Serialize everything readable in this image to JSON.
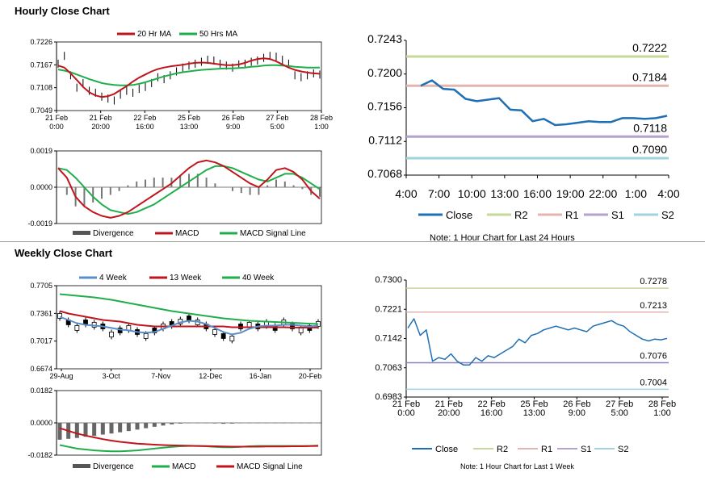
{
  "sections": {
    "hourly_title": "Hourly Close Chart",
    "weekly_title": "Weekly Close Chart"
  },
  "colors": {
    "ma20": "#c0151b",
    "ma50": "#1fae4b",
    "close": "#1f6fb5",
    "r2": "#c6d89a",
    "r1": "#e3b5b0",
    "s1": "#b5a3cf",
    "s2": "#9fd3de",
    "divergence": "#777777",
    "ma4": "#5b8fc9",
    "ma13": "#c0151b",
    "ma40": "#1fae4b"
  },
  "chart_data": [
    {
      "id": "hourly_price",
      "type": "line",
      "legend": [
        "20 Hr MA",
        "50 Hrs MA"
      ],
      "yticks": [
        "0.7226",
        "0.7167",
        "0.7108",
        "0.7049"
      ],
      "ylim": [
        0.7049,
        0.7226
      ],
      "xticks": [
        [
          "21 Feb",
          "0:00"
        ],
        [
          "21 Feb",
          "20:00"
        ],
        [
          "22 Feb",
          "16:00"
        ],
        [
          "25 Feb",
          "13:00"
        ],
        [
          "26 Feb",
          "9:00"
        ],
        [
          "27 Feb",
          "5:00"
        ],
        [
          "28 Feb",
          "1:00"
        ]
      ],
      "price": [
        0.717,
        0.719,
        0.714,
        0.7108,
        0.712,
        0.71,
        0.7095,
        0.7085,
        0.708,
        0.7075,
        0.709,
        0.71,
        0.7095,
        0.7105,
        0.711,
        0.712,
        0.7135,
        0.713,
        0.714,
        0.715,
        0.716,
        0.7165,
        0.717,
        0.7175,
        0.718,
        0.7178,
        0.717,
        0.7165,
        0.716,
        0.7168,
        0.717,
        0.7175,
        0.7178,
        0.7185,
        0.719,
        0.7188,
        0.718,
        0.717,
        0.714,
        0.7135,
        0.714,
        0.7145,
        0.7142
      ],
      "ma20": [
        0.7165,
        0.716,
        0.7145,
        0.7128,
        0.711,
        0.7096,
        0.7088,
        0.7084,
        0.7086,
        0.7092,
        0.7102,
        0.7112,
        0.7124,
        0.7134,
        0.7142,
        0.715,
        0.7156,
        0.716,
        0.7163,
        0.7165,
        0.7167,
        0.717,
        0.7172,
        0.7173,
        0.7172,
        0.717,
        0.7168,
        0.7166,
        0.7166,
        0.7168,
        0.7172,
        0.7178,
        0.7182,
        0.7184,
        0.7182,
        0.7176,
        0.7168,
        0.716,
        0.7154,
        0.715,
        0.7147,
        0.7145,
        0.7144
      ],
      "ma50": [
        0.7155,
        0.7152,
        0.7148,
        0.7142,
        0.7136,
        0.713,
        0.7125,
        0.712,
        0.7117,
        0.7115,
        0.7114,
        0.7114,
        0.7115,
        0.7118,
        0.7122,
        0.7127,
        0.7132,
        0.7137,
        0.7141,
        0.7145,
        0.7148,
        0.715,
        0.7152,
        0.7154,
        0.7155,
        0.7156,
        0.7157,
        0.7158,
        0.7158,
        0.7159,
        0.716,
        0.7162,
        0.7163,
        0.7165,
        0.7166,
        0.7166,
        0.7165,
        0.7164,
        0.7162,
        0.7161,
        0.716,
        0.716,
        0.716
      ]
    },
    {
      "id": "hourly_macd",
      "type": "line",
      "legend": [
        "Divergence",
        "MACD",
        "MACD Signal Line"
      ],
      "yticks": [
        "0.0019",
        "0.0000",
        "-0.0019"
      ],
      "ylim": [
        -0.0019,
        0.0019
      ],
      "macd": [
        0.001,
        0.0005,
        -0.0005,
        -0.001,
        -0.0013,
        -0.0015,
        -0.0016,
        -0.0015,
        -0.0013,
        -0.001,
        -0.0007,
        -0.0004,
        -0.0001,
        0.0002,
        0.0006,
        0.001,
        0.0013,
        0.0014,
        0.0013,
        0.0011,
        0.0008,
        0.0005,
        0.0002,
        0.0,
        0.0004,
        0.0009,
        0.001,
        0.0008,
        0.0004,
        -0.0002,
        -0.0006
      ],
      "signal": [
        0.001,
        0.0009,
        0.0005,
        0.0,
        -0.0005,
        -0.0009,
        -0.0012,
        -0.0013,
        -0.0014,
        -0.0013,
        -0.0011,
        -0.0009,
        -0.0006,
        -0.0003,
        0.0,
        0.0003,
        0.0006,
        0.0009,
        0.0011,
        0.0011,
        0.001,
        0.0008,
        0.0006,
        0.0004,
        0.0003,
        0.0005,
        0.0007,
        0.0007,
        0.0005,
        0.0002,
        -0.0001
      ]
    },
    {
      "id": "hourly_24h",
      "type": "line",
      "yticks": [
        "0.7243",
        "0.7200",
        "0.7156",
        "0.7112",
        "0.7068"
      ],
      "ylim": [
        0.7068,
        0.7243
      ],
      "xticks": [
        "4:00",
        "7:00",
        "10:00",
        "13:00",
        "16:00",
        "19:00",
        "22:00",
        "1:00",
        "4:00"
      ],
      "close": [
        0.7184,
        0.7191,
        0.718,
        0.7179,
        0.7167,
        0.7164,
        0.7166,
        0.7168,
        0.7153,
        0.7152,
        0.7138,
        0.7141,
        0.7133,
        0.7134,
        0.7136,
        0.7138,
        0.7137,
        0.7137,
        0.7142,
        0.7142,
        0.7141,
        0.7142,
        0.7145
      ],
      "levels": [
        {
          "name": "R2",
          "value": 0.7222,
          "label": "0.7222"
        },
        {
          "name": "R1",
          "value": 0.7184,
          "label": "0.7184"
        },
        {
          "name": "S1",
          "value": 0.7118,
          "label": "0.7118"
        },
        {
          "name": "S2",
          "value": 0.709,
          "label": "0.7090"
        }
      ],
      "legend": [
        "Close",
        "R2",
        "R1",
        "S1",
        "S2"
      ],
      "note": "Note: 1 Hour Chart for Last 24 Hours"
    },
    {
      "id": "weekly_price",
      "type": "line",
      "legend": [
        "4 Week",
        "13 Week",
        "40 Week"
      ],
      "yticks": [
        "0.7705",
        "0.7361",
        "0.7017",
        "0.6674"
      ],
      "ylim": [
        0.6674,
        0.7705
      ],
      "xticks": [
        "29-Aug",
        "3-Oct",
        "7-Nov",
        "12-Dec",
        "16-Jan",
        "20-Feb"
      ],
      "close": [
        0.733,
        0.725,
        0.718,
        0.725,
        0.722,
        0.72,
        0.71,
        0.715,
        0.718,
        0.713,
        0.708,
        0.715,
        0.72,
        0.723,
        0.726,
        0.73,
        0.725,
        0.72,
        0.713,
        0.708,
        0.705,
        0.72,
        0.722,
        0.72,
        0.723,
        0.718,
        0.725,
        0.72,
        0.715,
        0.718,
        0.723
      ],
      "ma4": [
        0.732,
        0.728,
        0.724,
        0.722,
        0.721,
        0.72,
        0.718,
        0.716,
        0.715,
        0.713,
        0.712,
        0.713,
        0.717,
        0.721,
        0.725,
        0.727,
        0.726,
        0.723,
        0.718,
        0.713,
        0.71,
        0.712,
        0.717,
        0.72,
        0.721,
        0.721,
        0.722,
        0.722,
        0.721,
        0.72,
        0.721
      ],
      "ma13": [
        0.739,
        0.736,
        0.734,
        0.732,
        0.73,
        0.728,
        0.727,
        0.726,
        0.724,
        0.722,
        0.721,
        0.72,
        0.72,
        0.72,
        0.72,
        0.72,
        0.72,
        0.72,
        0.72,
        0.72,
        0.719,
        0.719,
        0.719,
        0.719,
        0.719,
        0.719,
        0.719,
        0.7185,
        0.7185,
        0.7185,
        0.7185
      ],
      "ma40": [
        0.76,
        0.759,
        0.758,
        0.757,
        0.756,
        0.7545,
        0.753,
        0.751,
        0.749,
        0.747,
        0.745,
        0.743,
        0.741,
        0.739,
        0.7375,
        0.736,
        0.7345,
        0.733,
        0.7315,
        0.73,
        0.729,
        0.728,
        0.727,
        0.7265,
        0.726,
        0.7255,
        0.725,
        0.7245,
        0.724,
        0.7235,
        0.723
      ]
    },
    {
      "id": "weekly_macd",
      "type": "line",
      "legend": [
        "Divergence",
        "MACD",
        "MACD Signal Line"
      ],
      "yticks": [
        "0.0182",
        "0.0000",
        "-0.0182"
      ],
      "ylim": [
        -0.0182,
        0.0182
      ],
      "macd": [
        -0.0125,
        -0.0135,
        -0.0145,
        -0.015,
        -0.0155,
        -0.0158,
        -0.016,
        -0.016,
        -0.0158,
        -0.0155,
        -0.015,
        -0.0145,
        -0.014,
        -0.0135,
        -0.0132,
        -0.013,
        -0.013,
        -0.0132,
        -0.0135,
        -0.0138,
        -0.0138,
        -0.0135,
        -0.0132,
        -0.013,
        -0.013,
        -0.013,
        -0.013,
        -0.013,
        -0.013,
        -0.013,
        -0.0128
      ],
      "signal": [
        -0.003,
        -0.0045,
        -0.006,
        -0.0072,
        -0.0082,
        -0.0092,
        -0.01,
        -0.0107,
        -0.0112,
        -0.0117,
        -0.012,
        -0.0123,
        -0.0125,
        -0.0127,
        -0.0128,
        -0.0129,
        -0.013,
        -0.0131,
        -0.0132,
        -0.0133,
        -0.0134,
        -0.0134,
        -0.0134,
        -0.0134,
        -0.0133,
        -0.0133,
        -0.0133,
        -0.0132,
        -0.0132,
        -0.0131,
        -0.013
      ]
    },
    {
      "id": "weekly_hourly",
      "type": "line",
      "yticks": [
        "0.7300",
        "0.7221",
        "0.7142",
        "0.7063",
        "0.6983"
      ],
      "ylim": [
        0.6983,
        0.73
      ],
      "xticks": [
        [
          "21 Feb",
          "0:00"
        ],
        [
          "21 Feb",
          "20:00"
        ],
        [
          "22 Feb",
          "16:00"
        ],
        [
          "25 Feb",
          "13:00"
        ],
        [
          "26 Feb",
          "9:00"
        ],
        [
          "27 Feb",
          "5:00"
        ],
        [
          "28 Feb",
          "1:00"
        ]
      ],
      "close": [
        0.717,
        0.7195,
        0.715,
        0.7165,
        0.708,
        0.709,
        0.7085,
        0.71,
        0.708,
        0.707,
        0.707,
        0.709,
        0.708,
        0.7095,
        0.709,
        0.71,
        0.711,
        0.712,
        0.714,
        0.713,
        0.715,
        0.7155,
        0.7165,
        0.717,
        0.7175,
        0.717,
        0.7165,
        0.717,
        0.7165,
        0.716,
        0.7175,
        0.718,
        0.7185,
        0.719,
        0.718,
        0.7175,
        0.716,
        0.715,
        0.714,
        0.7135,
        0.714,
        0.7138,
        0.7142
      ],
      "levels": [
        {
          "name": "R2",
          "value": 0.7278,
          "label": "0.7278"
        },
        {
          "name": "R1",
          "value": 0.7213,
          "label": "0.7213"
        },
        {
          "name": "S1",
          "value": 0.7076,
          "label": "0.7076"
        },
        {
          "name": "S2",
          "value": 0.7004,
          "label": "0.7004"
        }
      ],
      "legend": [
        "Close",
        "R2",
        "R1",
        "S1",
        "S2"
      ],
      "note": "Note: 1 Hour Chart for Last 1 Week"
    }
  ]
}
